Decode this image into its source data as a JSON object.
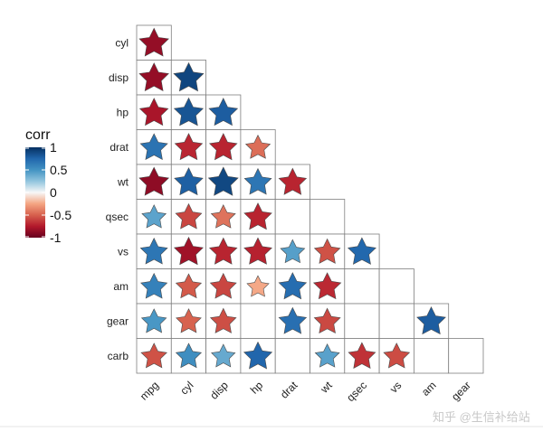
{
  "chart_data": {
    "type": "heatmap",
    "title": "",
    "xlabel": "",
    "ylabel": "",
    "marker": "star",
    "lower_triangle_only": true,
    "x_categories": [
      "mpg",
      "cyl",
      "disp",
      "hp",
      "drat",
      "wt",
      "qsec",
      "vs",
      "am",
      "gear"
    ],
    "y_categories": [
      "cyl",
      "disp",
      "hp",
      "drat",
      "wt",
      "qsec",
      "vs",
      "am",
      "gear",
      "carb"
    ],
    "values": [
      {
        "row": "cyl",
        "col": "mpg",
        "value": -0.85
      },
      {
        "row": "disp",
        "col": "mpg",
        "value": -0.85
      },
      {
        "row": "disp",
        "col": "cyl",
        "value": 0.9
      },
      {
        "row": "hp",
        "col": "mpg",
        "value": -0.78
      },
      {
        "row": "hp",
        "col": "cyl",
        "value": 0.83
      },
      {
        "row": "hp",
        "col": "disp",
        "value": 0.79
      },
      {
        "row": "drat",
        "col": "mpg",
        "value": 0.68
      },
      {
        "row": "drat",
        "col": "cyl",
        "value": -0.7
      },
      {
        "row": "drat",
        "col": "disp",
        "value": -0.71
      },
      {
        "row": "drat",
        "col": "hp",
        "value": -0.45
      },
      {
        "row": "wt",
        "col": "mpg",
        "value": -0.87
      },
      {
        "row": "wt",
        "col": "cyl",
        "value": 0.78
      },
      {
        "row": "wt",
        "col": "disp",
        "value": 0.89
      },
      {
        "row": "wt",
        "col": "hp",
        "value": 0.66
      },
      {
        "row": "wt",
        "col": "drat",
        "value": -0.71
      },
      {
        "row": "qsec",
        "col": "mpg",
        "value": 0.42
      },
      {
        "row": "qsec",
        "col": "cyl",
        "value": -0.59
      },
      {
        "row": "qsec",
        "col": "disp",
        "value": -0.43
      },
      {
        "row": "qsec",
        "col": "hp",
        "value": -0.71
      },
      {
        "row": "vs",
        "col": "mpg",
        "value": 0.66
      },
      {
        "row": "vs",
        "col": "cyl",
        "value": -0.81
      },
      {
        "row": "vs",
        "col": "disp",
        "value": -0.71
      },
      {
        "row": "vs",
        "col": "hp",
        "value": -0.72
      },
      {
        "row": "vs",
        "col": "drat",
        "value": 0.44
      },
      {
        "row": "vs",
        "col": "wt",
        "value": -0.55
      },
      {
        "row": "vs",
        "col": "qsec",
        "value": 0.74
      },
      {
        "row": "am",
        "col": "mpg",
        "value": 0.6
      },
      {
        "row": "am",
        "col": "cyl",
        "value": -0.52
      },
      {
        "row": "am",
        "col": "disp",
        "value": -0.59
      },
      {
        "row": "am",
        "col": "hp",
        "value": -0.24
      },
      {
        "row": "am",
        "col": "drat",
        "value": 0.71
      },
      {
        "row": "am",
        "col": "wt",
        "value": -0.69
      },
      {
        "row": "gear",
        "col": "mpg",
        "value": 0.48
      },
      {
        "row": "gear",
        "col": "cyl",
        "value": -0.49
      },
      {
        "row": "gear",
        "col": "disp",
        "value": -0.56
      },
      {
        "row": "gear",
        "col": "drat",
        "value": 0.7
      },
      {
        "row": "gear",
        "col": "wt",
        "value": -0.58
      },
      {
        "row": "gear",
        "col": "am",
        "value": 0.79
      },
      {
        "row": "carb",
        "col": "mpg",
        "value": -0.55
      },
      {
        "row": "carb",
        "col": "cyl",
        "value": 0.53
      },
      {
        "row": "carb",
        "col": "disp",
        "value": 0.39
      },
      {
        "row": "carb",
        "col": "hp",
        "value": 0.75
      },
      {
        "row": "carb",
        "col": "wt",
        "value": 0.43
      },
      {
        "row": "carb",
        "col": "qsec",
        "value": -0.66
      },
      {
        "row": "carb",
        "col": "vs",
        "value": -0.57
      }
    ],
    "legend": {
      "title": "corr",
      "ticks": [
        1,
        0.5,
        0,
        -0.5,
        -1
      ],
      "tick_labels": [
        "1",
        "0.5",
        "0",
        "-0.5",
        "-1"
      ],
      "range": [
        -1,
        1
      ],
      "colors": {
        "low": "#67001f",
        "mid": "#f7f7f7",
        "high": "#053061"
      },
      "placement": "left"
    },
    "grid": true
  },
  "watermark": "知乎 @生信补给站"
}
